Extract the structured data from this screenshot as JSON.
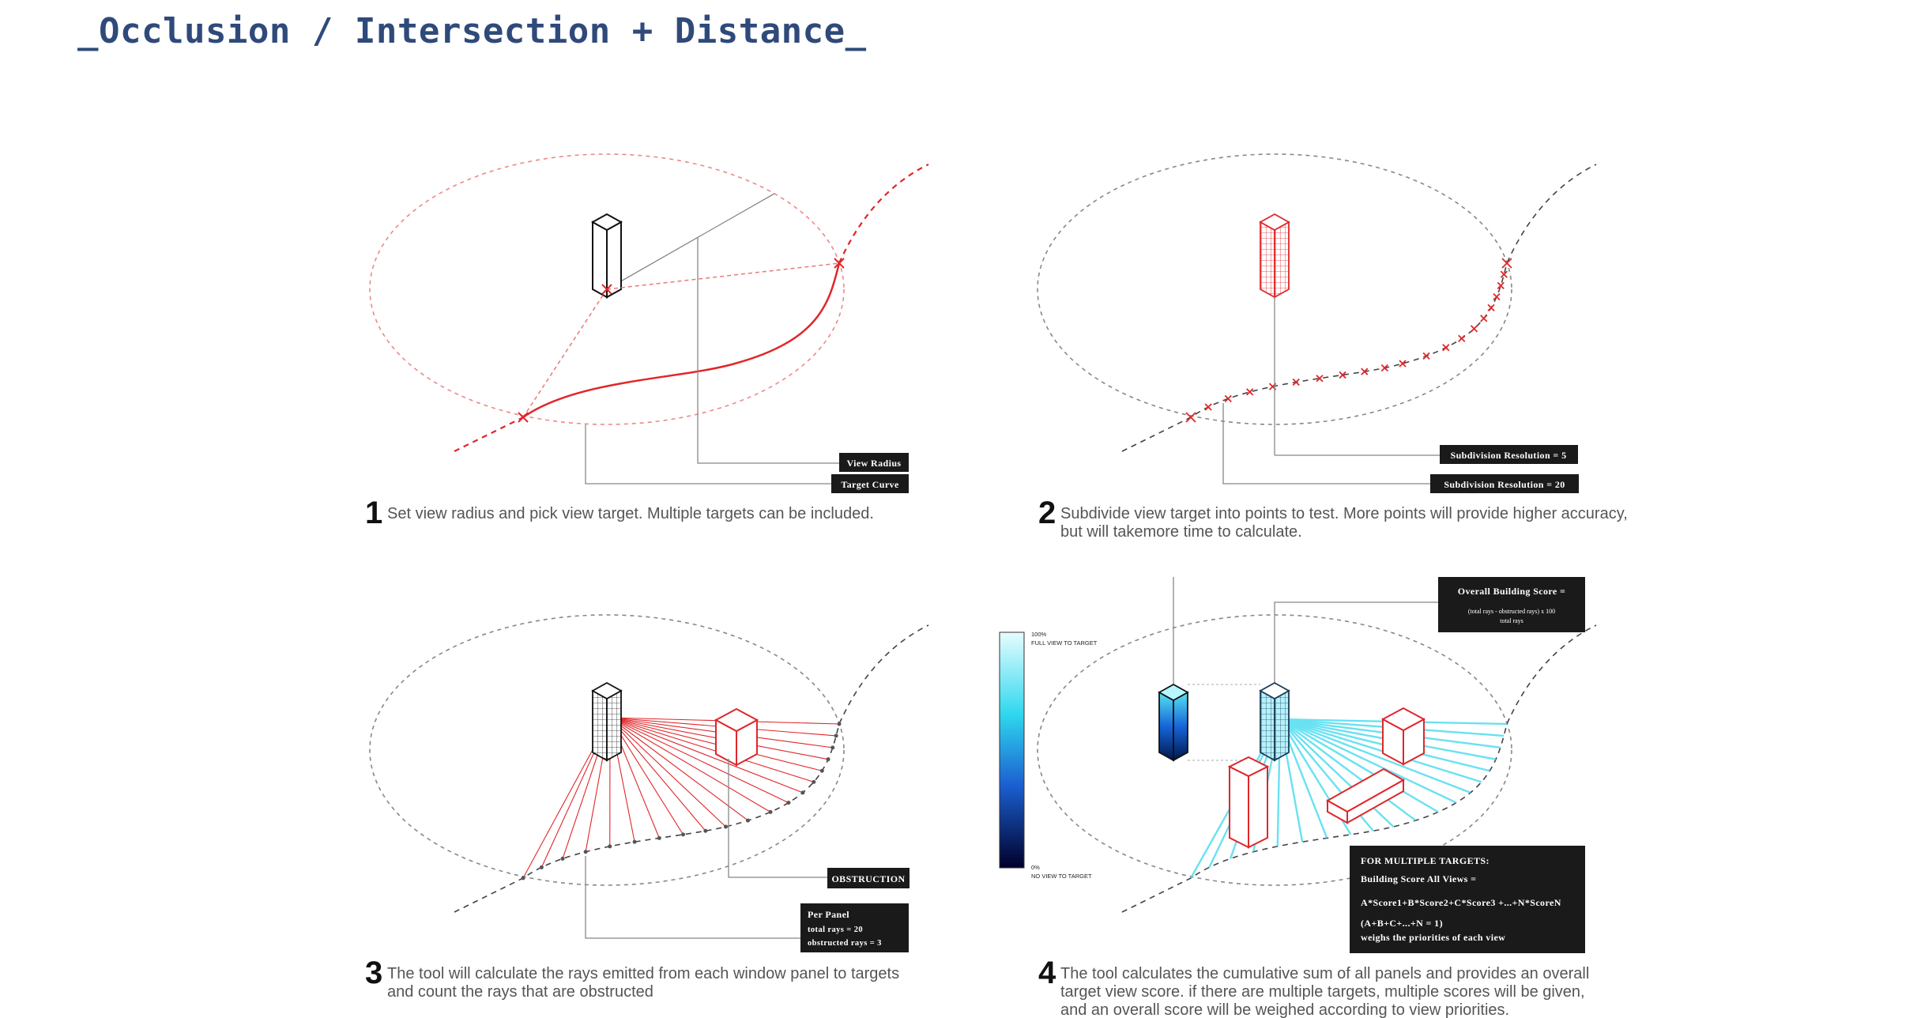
{
  "title": "_Occlusion / Intersection + Distance_",
  "colors": {
    "title": "#2f4a7a",
    "accent_red": "#e0262a",
    "gray_line": "#777777",
    "label_bg": "#1a1a1a",
    "gradient_top": "#e6fdff",
    "gradient_mid": "#2fd7ee",
    "gradient_low": "#1b5fd0",
    "gradient_bottom": "#00002a"
  },
  "panels": [
    {
      "number": "1",
      "caption": [
        "Set view radius and pick view target. Multiple targets can be included."
      ],
      "labels": [
        "View Radius",
        "Target Curve"
      ]
    },
    {
      "number": "2",
      "caption": [
        "Subdivide view target into points to test. More points will provide higher accuracy,",
        "but will takemore time to calculate."
      ],
      "labels": [
        "Subdivision Resolution = 5",
        "Subdivision Resolution = 20"
      ]
    },
    {
      "number": "3",
      "caption": [
        "The tool will calculate the rays emitted from each window panel to targets",
        "and count the rays that are obstructed"
      ],
      "labels": [
        "OBSTRUCTION"
      ],
      "per_panel": [
        "Per Panel",
        "total rays = 20",
        "obstructed rays = 3"
      ]
    },
    {
      "number": "4",
      "caption": [
        "The tool calculates the cumulative sum of all panels and provides an overall",
        "target view score.  if there are multiple targets, multiple scores will be given,",
        "and an overall score will be weighed according to view priorities."
      ],
      "overall_score": {
        "heading": "Overall Building Score =",
        "numerator": "(total rays - obstructed rays) x 100",
        "denominator": "total rays"
      },
      "multi_target": [
        "FOR MULTIPLE TARGETS:",
        "Building Score All Views =",
        "A*Score1+B*Score2+C*Score3 +...+N*ScoreN",
        "(A+B+C+...+N = 1)",
        "weighs the priorities of each view"
      ],
      "scale": {
        "max_label": "100%",
        "max_desc": "FULL VIEW TO TARGET",
        "min_label": "0%",
        "min_desc": "NO VIEW TO TARGET"
      }
    }
  ]
}
